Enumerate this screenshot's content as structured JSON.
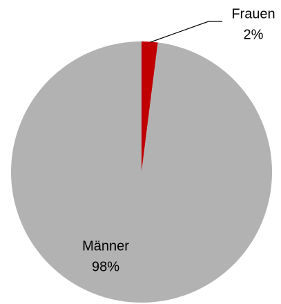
{
  "chart_data": {
    "type": "pie",
    "categories": [
      "Frauen",
      "Männer"
    ],
    "values": [
      2,
      98
    ],
    "value_labels": [
      "2%",
      "98%"
    ],
    "colors": [
      "#c00000",
      "#b2b2b2"
    ]
  }
}
